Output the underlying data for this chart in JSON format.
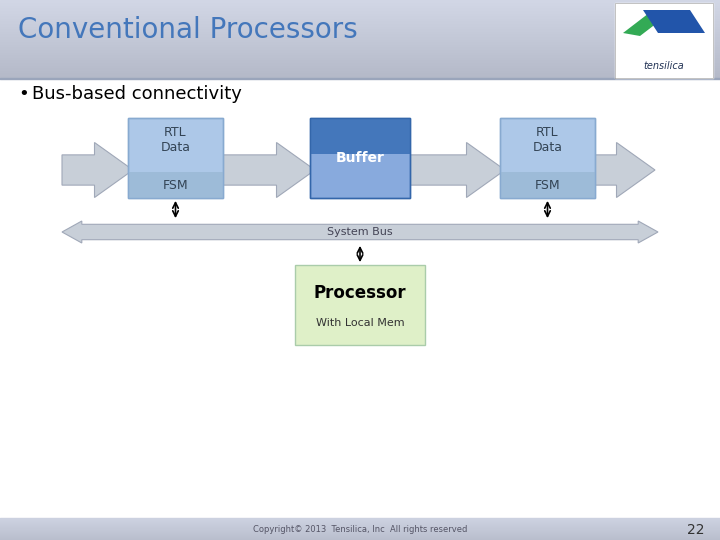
{
  "title": "Conventional Processors",
  "bullet": "Bus-based connectivity",
  "bg_top": "#c8cfe0",
  "bg_body": "#ffffff",
  "slide_number": "22",
  "copyright": "Copyright© 2013  Tensilica, Inc  All rights reserved",
  "rtl_box_color_top": "#adc8e8",
  "rtl_box_color_bot": "#c8dff5",
  "rtl_box_border": "#88aad0",
  "buffer_box_color_top": "#4477bb",
  "buffer_box_color_bot": "#88aadd",
  "buffer_box_border": "#3366aa",
  "processor_box_color": "#dff0c8",
  "processor_box_border": "#aaccaa",
  "arrow_color": "#c8cfd8",
  "arrow_edge": "#a0a8b8",
  "bus_color": "#c8cfd8",
  "bus_border": "#a0a8b8",
  "title_color": "#4477bb",
  "title_fontsize": 20,
  "body_fontsize": 13,
  "label_fontsize": 9
}
